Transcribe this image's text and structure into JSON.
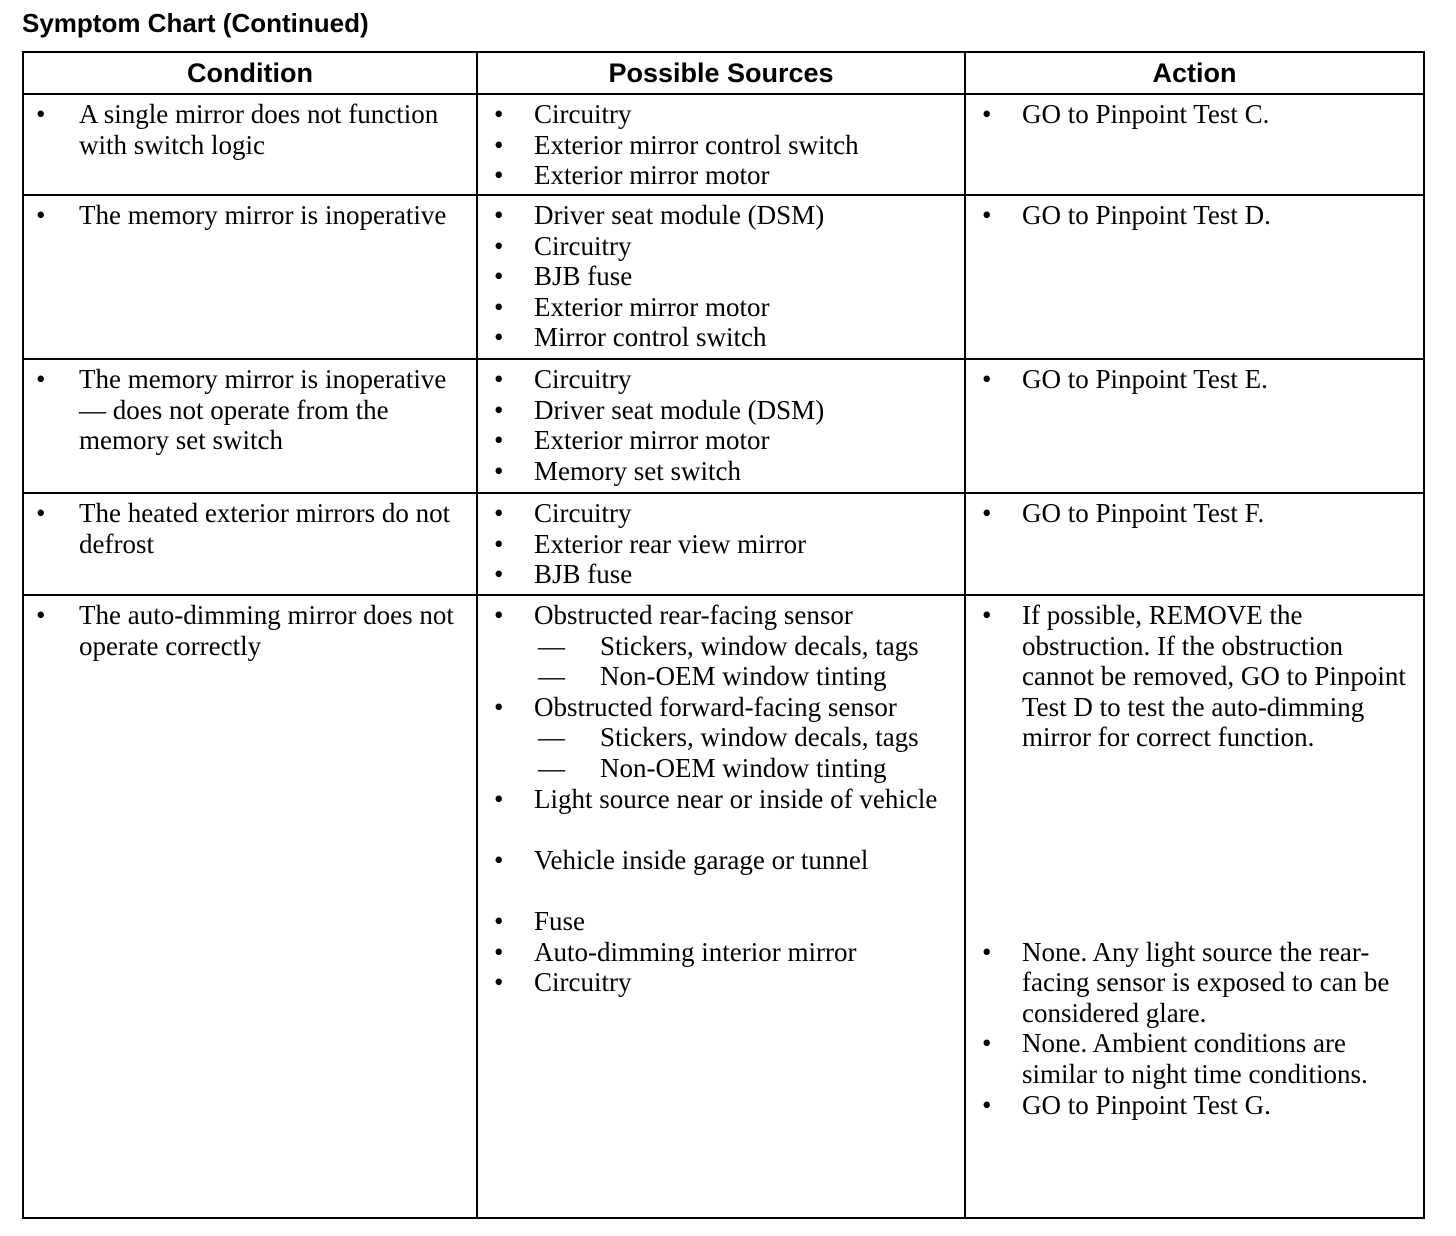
{
  "title": "Symptom Chart (Continued)",
  "headers": [
    "Condition",
    "Possible Sources",
    "Action"
  ],
  "bullet": "•",
  "dash": "—",
  "rows": [
    {
      "condition": "A single mirror does not function with switch logic",
      "sources": [
        "Circuitry",
        "Exterior mirror control switch",
        "Exterior mirror motor"
      ],
      "actions": [
        "GO to Pinpoint Test C."
      ]
    },
    {
      "condition": "The memory mirror is inoperative",
      "sources": [
        "Driver seat module (DSM)",
        "Circuitry",
        "BJB fuse",
        "Exterior mirror motor",
        "Mirror control switch"
      ],
      "actions": [
        "GO to Pinpoint Test D."
      ]
    },
    {
      "condition": "The memory mirror is inoperative — does not operate from the memory set switch",
      "sources": [
        "Circuitry",
        "Driver seat module (DSM)",
        "Exterior mirror motor",
        "Memory set switch"
      ],
      "actions": [
        "GO to Pinpoint Test E."
      ]
    },
    {
      "condition": "The heated exterior mirrors do not defrost",
      "sources": [
        "Circuitry",
        "Exterior rear view mirror",
        "BJB fuse"
      ],
      "actions": [
        "GO to Pinpoint Test F."
      ]
    },
    {
      "condition": "The auto-dimming mirror does not operate correctly",
      "sources": [
        {
          "text": "Obstructed rear-facing sensor",
          "sub": [
            "Stickers, window decals, tags",
            "Non-OEM window tinting"
          ]
        },
        {
          "text": "Obstructed forward-facing sensor",
          "sub": [
            "Stickers, window decals, tags",
            "Non-OEM window tinting"
          ]
        },
        {
          "text": "Light source near or inside of vehicle"
        },
        {
          "text": "Vehicle inside garage or tunnel"
        },
        {
          "text": "Fuse"
        },
        {
          "text": "Auto-dimming interior mirror"
        },
        {
          "text": "Circuitry"
        }
      ],
      "actions": [
        "If possible, REMOVE the obstruction. If the obstruction cannot be removed, GO to Pinpoint Test D to test the auto-dimming mirror for correct function.",
        "None. Any light source the rear-facing sensor is exposed to can be considered glare.",
        "None. Ambient conditions are similar to night time conditions.",
        "GO to Pinpoint Test G."
      ]
    }
  ]
}
